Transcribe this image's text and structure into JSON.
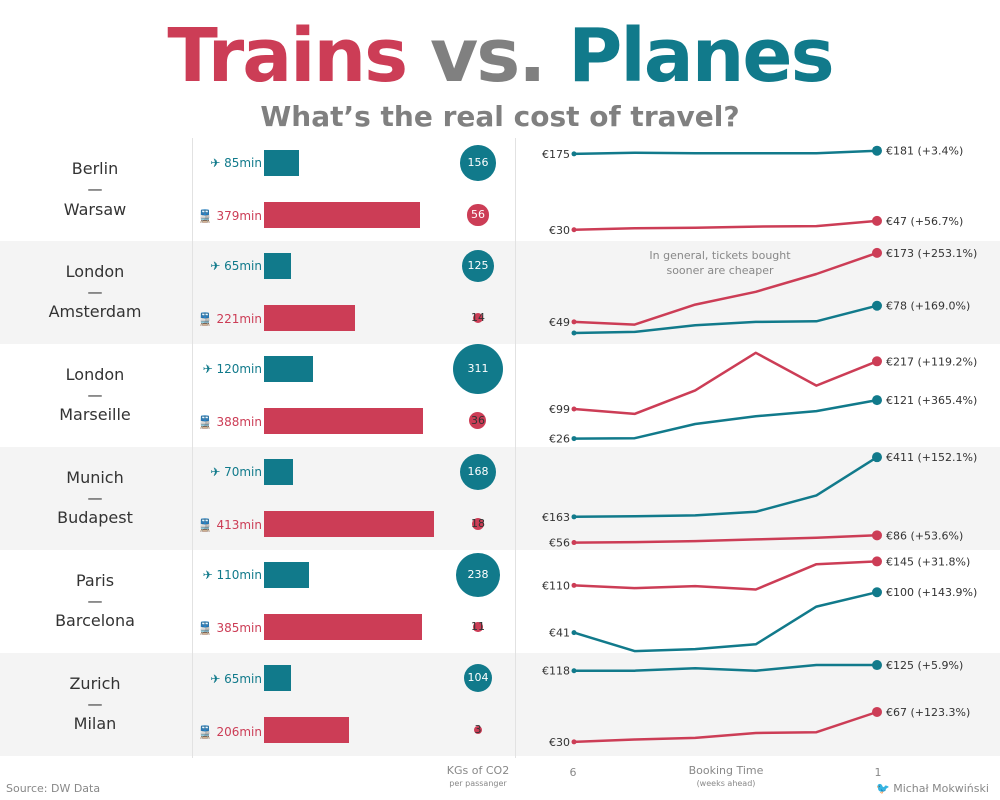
{
  "title": {
    "trains": "Trains",
    "vs": "vs.",
    "planes": "Planes"
  },
  "subtitle": "What’s the real cost of travel?",
  "colors": {
    "train": "#cc3d56",
    "plane": "#117a8b",
    "grey": "#808080",
    "band": "#f4f4f4"
  },
  "icons": {
    "plane": "airplane-icon",
    "train": "train-icon"
  },
  "footer": {
    "source": "Source: DW Data",
    "author": "Michał Mokwiński"
  },
  "axis": {
    "co2_label": "KGs of CO2",
    "co2_sub": "per passanger",
    "booking_label": "Booking Time",
    "booking_sub": "(weeks ahead)",
    "tick_left": "6",
    "tick_right": "1"
  },
  "note": {
    "line1": "In general, tickets bought",
    "line2": "sooner are cheaper"
  },
  "routes": [
    {
      "from": "Berlin",
      "dash": "—",
      "to": "Warsaw",
      "plane_time": "85min",
      "train_time": "379min",
      "plane_co2": "156",
      "train_co2": "56",
      "plane_start": "€175",
      "plane_end": "€181 (+3.4%)",
      "train_start": "€30",
      "train_end": "€47 (+56.7%)"
    },
    {
      "from": "London",
      "dash": "—",
      "to": "Amsterdam",
      "plane_time": "65min",
      "train_time": "221min",
      "plane_co2": "125",
      "train_co2": "14",
      "plane_start": "",
      "plane_end": "€78 (+169.0%)",
      "train_start": "€49",
      "train_end": "€173 (+253.1%)"
    },
    {
      "from": "London",
      "dash": "—",
      "to": "Marseille",
      "plane_time": "120min",
      "train_time": "388min",
      "plane_co2": "311",
      "train_co2": "36",
      "plane_start": "€26",
      "plane_end": "€121 (+365.4%)",
      "train_start": "€99",
      "train_end": "€217 (+119.2%)"
    },
    {
      "from": "Munich",
      "dash": "—",
      "to": "Budapest",
      "plane_time": "70min",
      "train_time": "413min",
      "plane_co2": "168",
      "train_co2": "18",
      "plane_start": "€163",
      "plane_end": "€411 (+152.1%)",
      "train_start": "€56",
      "train_end": "€86 (+53.6%)"
    },
    {
      "from": "Paris",
      "dash": "—",
      "to": "Barcelona",
      "plane_time": "110min",
      "train_time": "385min",
      "plane_co2": "238",
      "train_co2": "11",
      "plane_start": "€41",
      "plane_end": "€100 (+143.9%)",
      "train_start": "€110",
      "train_end": "€145 (+31.8%)"
    },
    {
      "from": "Zurich",
      "dash": "—",
      "to": "Milan",
      "plane_time": "65min",
      "train_time": "206min",
      "plane_co2": "104",
      "train_co2": "3",
      "plane_start": "€118",
      "plane_end": "€125 (+5.9%)",
      "train_start": "€30",
      "train_end": "€67 (+123.3%)"
    }
  ],
  "chart_data": [
    {
      "type": "bar",
      "title": "",
      "categories": [
        "Berlin — Warsaw",
        "London — Amsterdam",
        "London — Marseille",
        "Munich — Budapest",
        "Paris — Barcelona",
        "Zurich — Milan"
      ],
      "series": [
        {
          "name": "",
          "values": [
            85,
            65,
            120,
            70,
            110,
            65
          ]
        },
        {
          "name": "",
          "values": [
            379,
            221,
            388,
            413,
            385,
            206
          ]
        }
      ],
      "value_suffix": "min"
    },
    {
      "type": "scatter",
      "title": "",
      "xlabel": "KGs of CO2",
      "categories": [
        "Berlin — Warsaw",
        "London — Amsterdam",
        "London — Marseille",
        "Munich — Budapest",
        "Paris — Barcelona",
        "Zurich — Milan"
      ],
      "series": [
        {
          "name": "",
          "values": [
            156,
            125,
            311,
            168,
            238,
            104
          ]
        },
        {
          "name": "",
          "values": [
            56,
            14,
            36,
            18,
            11,
            3
          ]
        }
      ]
    },
    {
      "type": "line",
      "title": "",
      "xlabel": "Booking Time",
      "x": [
        6,
        5,
        4,
        3,
        2,
        1
      ],
      "xlim": [
        6,
        1
      ],
      "panels": [
        {
          "route": "Berlin — Warsaw",
          "ylim": [
            20,
            190
          ],
          "series": [
            {
              "name": "",
              "values": [
                175,
                177,
                176,
                176,
                176,
                181
              ]
            },
            {
              "name": "",
              "values": [
                30,
                33,
                34,
                36,
                37,
                47
              ]
            }
          ]
        },
        {
          "route": "London — Amsterdam",
          "ylim": [
            20,
            180
          ],
          "series": [
            {
              "name": "",
              "values": [
                29,
                31,
                43,
                49,
                50,
                78
              ]
            },
            {
              "name": "",
              "values": [
                49,
                44,
                80,
                103,
                135,
                173
              ]
            }
          ]
        },
        {
          "route": "London — Marseille",
          "ylim": [
            20,
            240
          ],
          "series": [
            {
              "name": "",
              "values": [
                26,
                27,
                62,
                81,
                94,
                121
              ]
            },
            {
              "name": "",
              "values": [
                99,
                87,
                145,
                238,
                157,
                217
              ]
            }
          ]
        },
        {
          "route": "Munich — Budapest",
          "ylim": [
            50,
            420
          ],
          "series": [
            {
              "name": "",
              "values": [
                163,
                165,
                169,
                184,
                252,
                411
              ]
            },
            {
              "name": "",
              "values": [
                56,
                58,
                62,
                69,
                76,
                86
              ]
            }
          ]
        },
        {
          "route": "Paris — Barcelona",
          "ylim": [
            20,
            150
          ],
          "series": [
            {
              "name": "",
              "values": [
                41,
                14,
                17,
                24,
                79,
                100
              ]
            },
            {
              "name": "",
              "values": [
                110,
                106,
                109,
                104,
                141,
                145
              ]
            }
          ]
        },
        {
          "route": "Zurich — Milan",
          "ylim": [
            20,
            130
          ],
          "series": [
            {
              "name": "",
              "values": [
                118,
                118,
                121,
                118,
                125,
                125
              ]
            },
            {
              "name": "",
              "values": [
                30,
                33,
                35,
                41,
                42,
                67
              ]
            }
          ]
        }
      ]
    }
  ]
}
